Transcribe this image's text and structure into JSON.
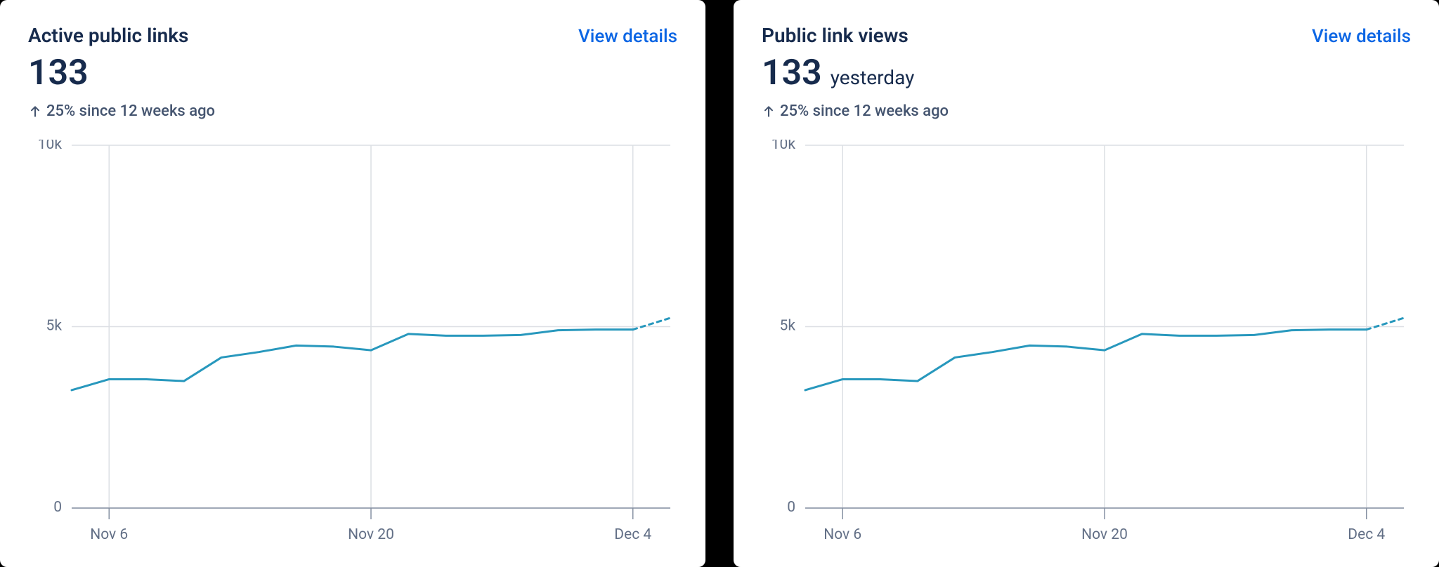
{
  "colors": {
    "background": "#ffffff",
    "text_primary": "#172B4D",
    "text_secondary": "#44546F",
    "tick_label": "#626F86",
    "link": "#0C66E4",
    "gridline": "#DCDFE4",
    "axis_line": "#8590A2",
    "tick_mark": "#8590A2",
    "series_line": "#2898BD"
  },
  "cards": [
    {
      "id": "active-public-links",
      "title": "Active public links",
      "view_details_label": "View details",
      "metric_value": "133",
      "metric_suffix": "",
      "trend_icon": "arrow-up",
      "trend_text": "25% since 12 weeks ago",
      "chart": {
        "type": "line",
        "y_axis": {
          "min": 0,
          "max": 10000,
          "ticks": [
            0,
            5000,
            10000
          ],
          "tick_labels": [
            "0",
            "5k",
            "10k"
          ]
        },
        "x_axis": {
          "n_points": 16,
          "vgrid_indices": [
            1,
            8,
            15
          ],
          "tick_indices": [
            1,
            8,
            15
          ],
          "tick_labels": [
            "Nov 6",
            "Nov 20",
            "Dec 4"
          ]
        },
        "solid_values": [
          3250,
          3550,
          3550,
          3500,
          4150,
          4300,
          4480,
          4450,
          4350,
          4800,
          4750,
          4750,
          4770,
          4900,
          4920,
          4920
        ],
        "dashed_continuation": [
          4920,
          5240
        ],
        "line_width": 3,
        "dash_pattern": "6,6",
        "grid_on": true
      }
    },
    {
      "id": "public-link-views",
      "title": "Public link views",
      "view_details_label": "View details",
      "metric_value": "133",
      "metric_suffix": "yesterday",
      "trend_icon": "arrow-up",
      "trend_text": "25% since 12 weeks ago",
      "chart": {
        "type": "line",
        "y_axis": {
          "min": 0,
          "max": 10000,
          "ticks": [
            0,
            5000,
            10000
          ],
          "tick_labels": [
            "0",
            "5k",
            "10k"
          ]
        },
        "x_axis": {
          "n_points": 16,
          "vgrid_indices": [
            1,
            8,
            15
          ],
          "tick_indices": [
            1,
            8,
            15
          ],
          "tick_labels": [
            "Nov 6",
            "Nov 20",
            "Dec 4"
          ]
        },
        "solid_values": [
          3250,
          3550,
          3550,
          3500,
          4150,
          4300,
          4480,
          4450,
          4350,
          4800,
          4750,
          4750,
          4770,
          4900,
          4920,
          4920
        ],
        "dashed_continuation": [
          4920,
          5240
        ],
        "line_width": 3,
        "dash_pattern": "6,6",
        "grid_on": true
      }
    }
  ]
}
